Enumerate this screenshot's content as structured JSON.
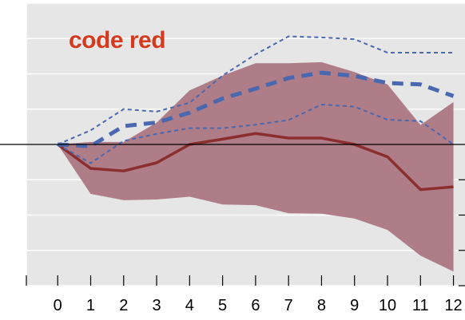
{
  "chart_data": {
    "type": "line",
    "title": "code red",
    "x": [
      0,
      1,
      2,
      3,
      4,
      5,
      6,
      7,
      8,
      9,
      10,
      11,
      12
    ],
    "xlim": [
      -0.95,
      12.35
    ],
    "ylim": [
      -4,
      4
    ],
    "grid": true,
    "zero_line": true,
    "series": [
      {
        "style": "solid",
        "color": "#8b2e2e",
        "values": [
          0,
          -0.68,
          -0.75,
          -0.52,
          0,
          0.15,
          0.31,
          0.18,
          0.18,
          0,
          -0.35,
          -1.28,
          -1.2
        ]
      },
      {
        "style": "thick-dash",
        "color": "#4a68b0",
        "values": [
          0,
          -0.05,
          0.52,
          0.62,
          0.9,
          1.3,
          1.58,
          1.88,
          2.03,
          1.94,
          1.74,
          1.7,
          1.37
        ]
      },
      {
        "style": "thin-dash-upper",
        "color": "#4a68b0",
        "values": [
          0,
          0.4,
          1.0,
          0.93,
          1.18,
          1.95,
          2.55,
          3.06,
          3.03,
          2.98,
          2.6,
          2.6,
          2.6
        ]
      },
      {
        "style": "thin-dash-lower",
        "color": "#4a68b0",
        "values": [
          0,
          -0.53,
          0.1,
          0.3,
          0.46,
          0.46,
          0.56,
          0.69,
          1.13,
          1.07,
          0.7,
          0.66,
          0.0
        ]
      }
    ],
    "band": {
      "color": "#ae7d88",
      "upper": [
        0,
        0.07,
        0.07,
        0.62,
        1.53,
        1.95,
        2.3,
        2.3,
        2.33,
        2.05,
        1.7,
        0.55,
        1.2
      ],
      "lower": [
        0,
        -1.4,
        -1.58,
        -1.56,
        -1.48,
        -1.7,
        -1.72,
        -1.95,
        -1.96,
        -2.1,
        -2.42,
        -3.15,
        -3.6
      ]
    }
  }
}
